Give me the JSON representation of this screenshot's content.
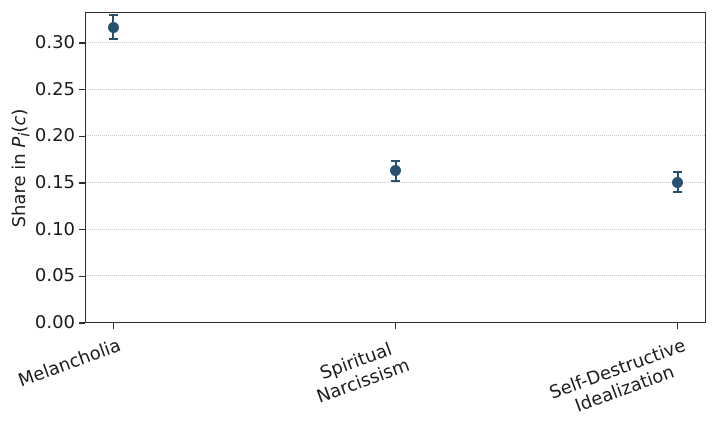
{
  "chart_data": {
    "type": "scatter",
    "title": "",
    "xlabel": "",
    "ylabel_text": "Share in Pi(c)",
    "ylabel": {
      "prefix": "Share in ",
      "symbol": "P",
      "subscript": "i",
      "open_paren": "(",
      "arg": "c",
      "close_paren": ")"
    },
    "categories": [
      "Melancholia",
      "Spiritual\nNarcissism",
      "Self-Destructive\nIdealization"
    ],
    "values": [
      0.317,
      0.163,
      0.151
    ],
    "errors": [
      0.013,
      0.011,
      0.011
    ],
    "yticks": [
      0.0,
      0.05,
      0.1,
      0.15,
      0.2,
      0.25,
      0.3
    ],
    "ytick_labels": [
      "0.00",
      "0.05",
      "0.10",
      "0.15",
      "0.20",
      "0.25",
      "0.30"
    ],
    "ylim": [
      0,
      0.3333
    ],
    "xtick_rotation_deg": 20,
    "grid": "horizontal",
    "grid_style": "dotted",
    "legend": "none",
    "marker_color": "#26526f",
    "grid_color": "#c8c8c8",
    "spine_color": "#2e2e2e",
    "text_color": "#1c1c1c",
    "background_color": "#ffffff"
  }
}
